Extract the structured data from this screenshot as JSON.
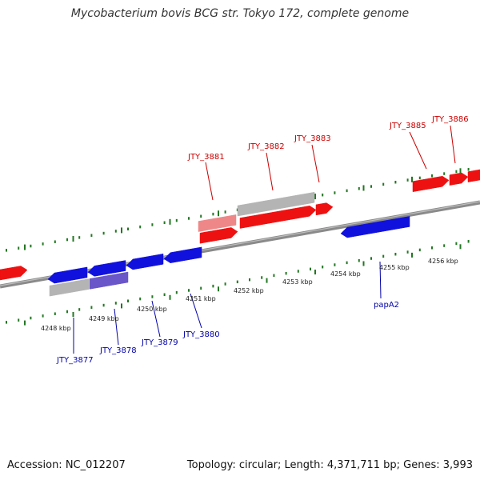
{
  "title": "Mycobacterium bovis BCG str. Tokyo 172, complete genome",
  "footer": {
    "accession": "Accession: NC_012207",
    "summary": "Topology: circular; Length: 4,371,711 bp; Genes: 3,993"
  },
  "colors": {
    "forward_gene": "#ee1111",
    "reverse_gene": "#1111dd",
    "pseudo_gene": "#b4b4b4",
    "forward_label": "#cc0000",
    "reverse_label": "#0000aa",
    "tick": "#227722",
    "backbone": "#8a8a8a"
  },
  "ticks": [
    {
      "label": "4248 kbp"
    },
    {
      "label": "4249 kbp"
    },
    {
      "label": "4250 kbp"
    },
    {
      "label": "4251 kbp"
    },
    {
      "label": "4252 kbp"
    },
    {
      "label": "4253 kbp"
    },
    {
      "label": "4254 kbp"
    },
    {
      "label": "4255 kbp"
    },
    {
      "label": "4256 kbp"
    }
  ],
  "gene_labels": [
    {
      "name": "JTY_3881",
      "strand": "+"
    },
    {
      "name": "JTY_3882",
      "strand": "+"
    },
    {
      "name": "JTY_3883",
      "strand": "+"
    },
    {
      "name": "JTY_3885",
      "strand": "+"
    },
    {
      "name": "JTY_3886",
      "strand": "+"
    },
    {
      "name": "JTY_3877",
      "strand": "-"
    },
    {
      "name": "JTY_3878",
      "strand": "-"
    },
    {
      "name": "JTY_3879",
      "strand": "-"
    },
    {
      "name": "JTY_3880",
      "strand": "-"
    },
    {
      "name": "papA2",
      "strand": "-"
    }
  ]
}
